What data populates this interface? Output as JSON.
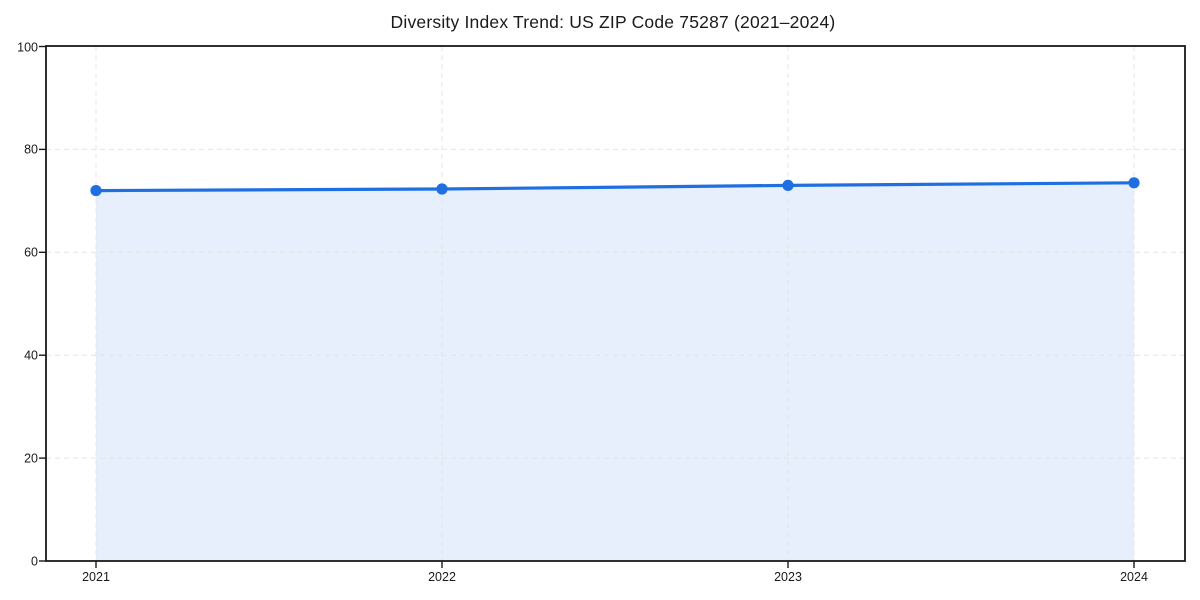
{
  "chart_data": {
    "type": "line",
    "area_fill": true,
    "title": "Diversity Index Trend: US ZIP Code 75287 (2021–2024)",
    "categories": [
      "2021",
      "2022",
      "2023",
      "2024"
    ],
    "values": [
      72.0,
      72.3,
      73.0,
      73.5
    ],
    "xlabel": "",
    "ylabel": "",
    "ylim": [
      0,
      100
    ],
    "yticks": [
      0,
      20,
      40,
      60,
      80,
      100
    ],
    "grid": "dashed",
    "legend": "none",
    "marker": "circle",
    "colors": {
      "line": "#1f6fe0",
      "fill": "#e7effc",
      "grid": "#e4e4e4",
      "axis": "#1a1a1a",
      "text": "#1a1a1a"
    }
  }
}
